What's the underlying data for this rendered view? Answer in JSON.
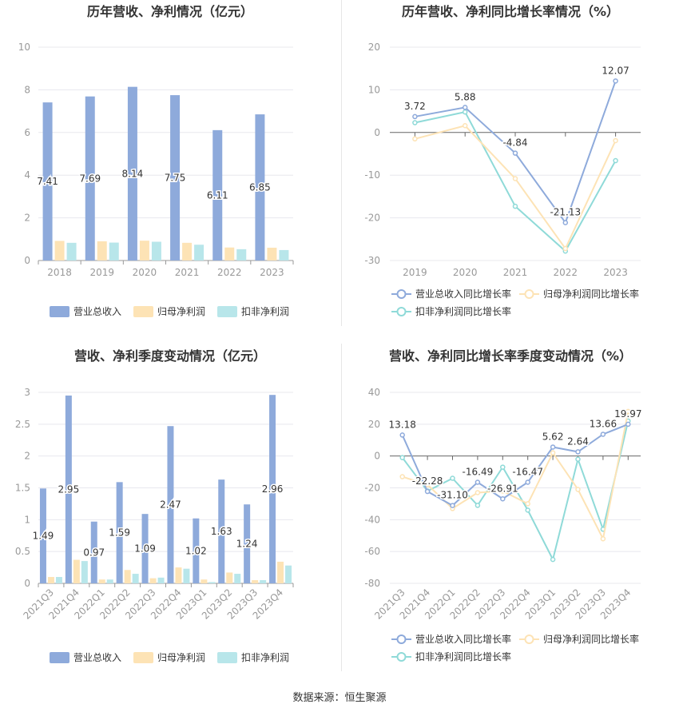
{
  "source_text": "数据来源：恒生聚源",
  "colors": {
    "revenue": "#8eaadb",
    "net_profit": "#fde3b5",
    "deducted_profit": "#b8e6ea",
    "revenue_line": "#8eaadb",
    "net_profit_line": "#fde3b5",
    "deducted_profit_line": "#8fdad8",
    "axis_text": "#999999",
    "grid": "#e8e8ee"
  },
  "chart_data": [
    {
      "type": "bar",
      "title": "历年营收、净利情况（亿元）",
      "categories": [
        "2018",
        "2019",
        "2020",
        "2021",
        "2022",
        "2023"
      ],
      "ylim": [
        0,
        10
      ],
      "yticks": [
        0,
        2,
        4,
        6,
        8,
        10
      ],
      "series": [
        {
          "name": "营业总收入",
          "values": [
            7.41,
            7.69,
            8.14,
            7.75,
            6.11,
            6.85
          ],
          "labels": [
            "7.41",
            "7.69",
            "8.14",
            "7.75",
            "6.11",
            "6.85"
          ]
        },
        {
          "name": "归母净利润",
          "values": [
            0.92,
            0.9,
            0.93,
            0.83,
            0.61,
            0.6
          ]
        },
        {
          "name": "扣非净利润",
          "values": [
            0.83,
            0.84,
            0.88,
            0.74,
            0.53,
            0.49
          ]
        }
      ],
      "legend_position": "bottom"
    },
    {
      "type": "line",
      "title": "历年营收、净利同比增长率情况（%）",
      "categories": [
        "2019",
        "2020",
        "2021",
        "2022",
        "2023"
      ],
      "ylim": [
        -30,
        20
      ],
      "yticks": [
        -30,
        -20,
        -10,
        0,
        10,
        20
      ],
      "series": [
        {
          "name": "营业总收入同比增长率",
          "values": [
            3.72,
            5.88,
            -4.84,
            -21.13,
            12.07
          ],
          "labels": [
            "3.72",
            "5.88",
            "-4.84",
            "-21.13",
            "12.07"
          ]
        },
        {
          "name": "归母净利润同比增长率",
          "values": [
            -1.5,
            1.6,
            -10.8,
            -27.2,
            -1.9
          ]
        },
        {
          "name": "扣非净利润同比增长率",
          "values": [
            2.3,
            4.8,
            -17.3,
            -27.8,
            -6.6
          ]
        }
      ],
      "legend_position": "bottom"
    },
    {
      "type": "bar",
      "title": "营收、净利季度变动情况（亿元）",
      "categories": [
        "2021Q3",
        "2021Q4",
        "2022Q1",
        "2022Q2",
        "2022Q3",
        "2022Q4",
        "2023Q1",
        "2023Q2",
        "2023Q3",
        "2023Q4"
      ],
      "ylim": [
        0,
        3
      ],
      "yticks": [
        0,
        0.5,
        1,
        1.5,
        2,
        2.5,
        3
      ],
      "series": [
        {
          "name": "营业总收入",
          "values": [
            1.49,
            2.95,
            0.97,
            1.59,
            1.09,
            2.47,
            1.02,
            1.63,
            1.24,
            2.96
          ],
          "labels": [
            "1.49",
            "2.95",
            "0.97",
            "1.59",
            "1.09",
            "2.47",
            "1.02",
            "1.63",
            "1.24",
            "2.96"
          ]
        },
        {
          "name": "归母净利润",
          "values": [
            0.1,
            0.37,
            0.06,
            0.21,
            0.08,
            0.25,
            0.06,
            0.17,
            0.05,
            0.34
          ]
        },
        {
          "name": "扣非净利润",
          "values": [
            0.1,
            0.35,
            0.06,
            0.15,
            0.09,
            0.23,
            0.02,
            0.15,
            0.05,
            0.28
          ]
        }
      ],
      "legend_position": "bottom"
    },
    {
      "type": "line",
      "title": "营收、净利同比增长率季度变动情况（%）",
      "categories": [
        "2021Q3",
        "2021Q4",
        "2022Q1",
        "2022Q2",
        "2022Q3",
        "2022Q4",
        "2023Q1",
        "2023Q2",
        "2023Q3",
        "2023Q4"
      ],
      "ylim": [
        -80,
        40
      ],
      "yticks": [
        -80,
        -60,
        -40,
        -20,
        0,
        20,
        40
      ],
      "series": [
        {
          "name": "营业总收入同比增长率",
          "values": [
            13.18,
            -22.28,
            -31.1,
            -16.49,
            -26.91,
            -16.47,
            5.62,
            2.64,
            13.66,
            19.97
          ],
          "labels": [
            "13.18",
            "-22.28",
            "-31.10",
            "-16.49",
            "-26.91",
            "-16.47",
            "5.62",
            "2.64",
            "13.66",
            "19.97"
          ]
        },
        {
          "name": "归母净利润同比增长率",
          "values": [
            -13,
            -18,
            -33,
            -23,
            -22,
            -30,
            2,
            -21,
            -52,
            28
          ]
        },
        {
          "name": "扣非净利润同比增长率",
          "values": [
            -1,
            -22,
            -14,
            -31,
            -7,
            -34,
            -65,
            -2,
            -46,
            22
          ]
        }
      ],
      "legend_position": "bottom"
    }
  ]
}
